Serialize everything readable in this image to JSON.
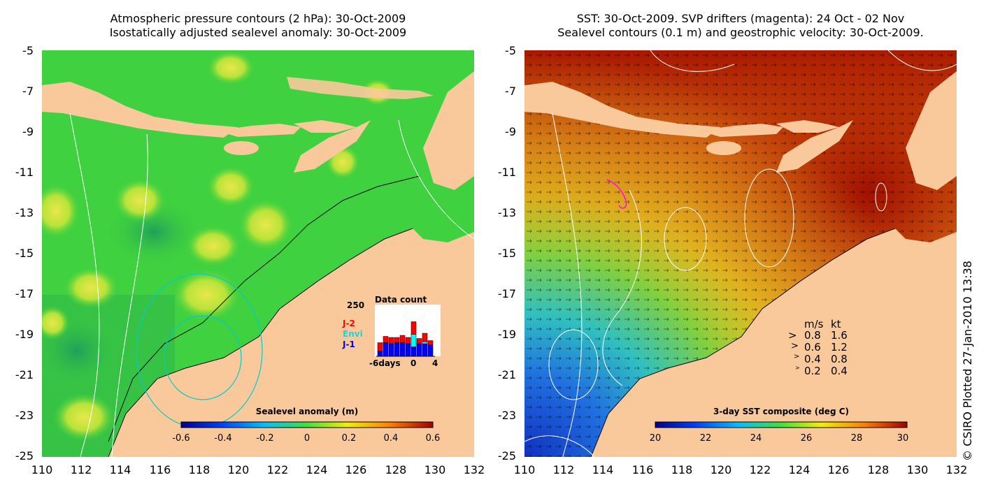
{
  "left_panel": {
    "title_line1": "Atmospheric pressure contours (2 hPa): 30-Oct-2009",
    "title_line2": "Isostatically adjusted sealevel anomaly: 30-Oct-2009",
    "y_ticks": [
      "-5",
      "-7",
      "-9",
      "-11",
      "-13",
      "-15",
      "-17",
      "-19",
      "-21",
      "-23",
      "-25"
    ],
    "x_ticks": [
      "110",
      "112",
      "114",
      "116",
      "118",
      "120",
      "122",
      "124",
      "126",
      "128",
      "130",
      "132"
    ],
    "colorbar": {
      "title": "Sealevel anomaly (m)",
      "ticks": [
        "-0.6",
        "-0.4",
        "-0.2",
        "0",
        "0.2",
        "0.4",
        "0.6"
      ]
    },
    "data_count": {
      "title": "Data count",
      "ymax_label": "250",
      "x_labels": [
        "-6days",
        "0",
        "4"
      ],
      "series": [
        {
          "name": "J-2",
          "color": "#ff0000",
          "values": [
            40,
            30,
            30,
            25,
            35,
            30,
            60,
            25,
            40,
            20
          ]
        },
        {
          "name": "Envi",
          "color": "#00ffff",
          "values": [
            0,
            0,
            0,
            0,
            0,
            0,
            60,
            0,
            10,
            0
          ]
        },
        {
          "name": "J-1",
          "color": "#0000ff",
          "values": [
            25,
            65,
            60,
            65,
            65,
            60,
            45,
            60,
            60,
            55
          ]
        }
      ]
    }
  },
  "right_panel": {
    "title_line1": "SST: 30-Oct-2009. SVP drifters (magenta): 24 Oct - 02 Nov",
    "title_line2": "Sealevel contours (0.1 m) and geostrophic velocity: 30-Oct-2009.",
    "y_ticks": [
      "-5",
      "-7",
      "-9",
      "-11",
      "-13",
      "-15",
      "-17",
      "-19",
      "-21",
      "-23",
      "-25"
    ],
    "x_ticks": [
      "110",
      "112",
      "114",
      "116",
      "118",
      "120",
      "122",
      "124",
      "126",
      "128",
      "130",
      "132"
    ],
    "colorbar": {
      "title": "3-day SST composite (deg C)",
      "ticks": [
        "20",
        "22",
        "24",
        "26",
        "28",
        "30"
      ]
    },
    "velocity_legend": {
      "header_ms": "m/s",
      "header_kt": "kt",
      "rows": [
        {
          "ms": "0.8",
          "kt": "1.6"
        },
        {
          "ms": "0.6",
          "kt": "1.2"
        },
        {
          "ms": "0.4",
          "kt": "0.8"
        },
        {
          "ms": "0.2",
          "kt": "0.4"
        }
      ]
    }
  },
  "copyright": "© CSIRO Plotted 27-Jan-2010 13:38",
  "colors": {
    "land": "#f9c99b",
    "ocean_green": "#3fd13f",
    "sst_warm": "#c02b0a"
  }
}
